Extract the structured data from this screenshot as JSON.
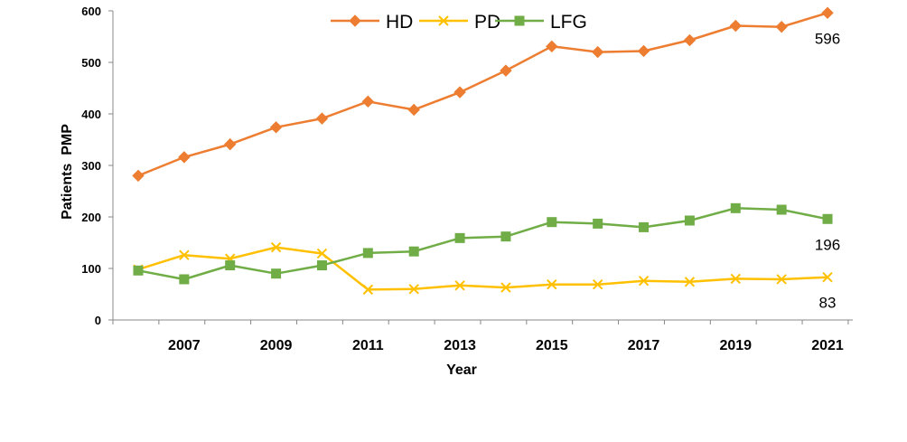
{
  "chart_data": {
    "type": "line",
    "title": "",
    "xlabel": "Year",
    "ylabel": "Patients  PMP",
    "x": [
      2006,
      2007,
      2008,
      2009,
      2010,
      2011,
      2012,
      2013,
      2014,
      2015,
      2016,
      2017,
      2018,
      2019,
      2020,
      2021
    ],
    "x_tick_labels": [
      "2007",
      "2009",
      "2011",
      "2013",
      "2015",
      "2017",
      "2019",
      "2021"
    ],
    "x_tick_values": [
      2007,
      2009,
      2011,
      2013,
      2015,
      2017,
      2019,
      2021
    ],
    "xlim": [
      2005.45,
      2021.55
    ],
    "ylim": [
      0,
      600
    ],
    "y_ticks": [
      0,
      100,
      200,
      300,
      400,
      500,
      600
    ],
    "grid": false,
    "legend_position": "top-center",
    "series": [
      {
        "name": "HD",
        "color": "#ED7D31",
        "marker": "diamond",
        "values": [
          280,
          316,
          341,
          374,
          391,
          424,
          408,
          442,
          484,
          531,
          520,
          522,
          543,
          571,
          569,
          596
        ]
      },
      {
        "name": "PD",
        "color": "#FFC000",
        "marker": "x",
        "values": [
          98,
          126,
          119,
          141,
          129,
          59,
          60,
          67,
          63,
          69,
          69,
          76,
          74,
          80,
          79,
          83
        ]
      },
      {
        "name": "LFG",
        "color": "#70AD47",
        "marker": "square",
        "values": [
          96,
          79,
          106,
          90,
          106,
          130,
          133,
          159,
          162,
          190,
          187,
          180,
          193,
          217,
          214,
          196
        ]
      }
    ],
    "annotations": [
      {
        "series": "HD",
        "text": "596"
      },
      {
        "series": "LFG",
        "text": "196"
      },
      {
        "series": "PD",
        "text": "83"
      }
    ]
  }
}
